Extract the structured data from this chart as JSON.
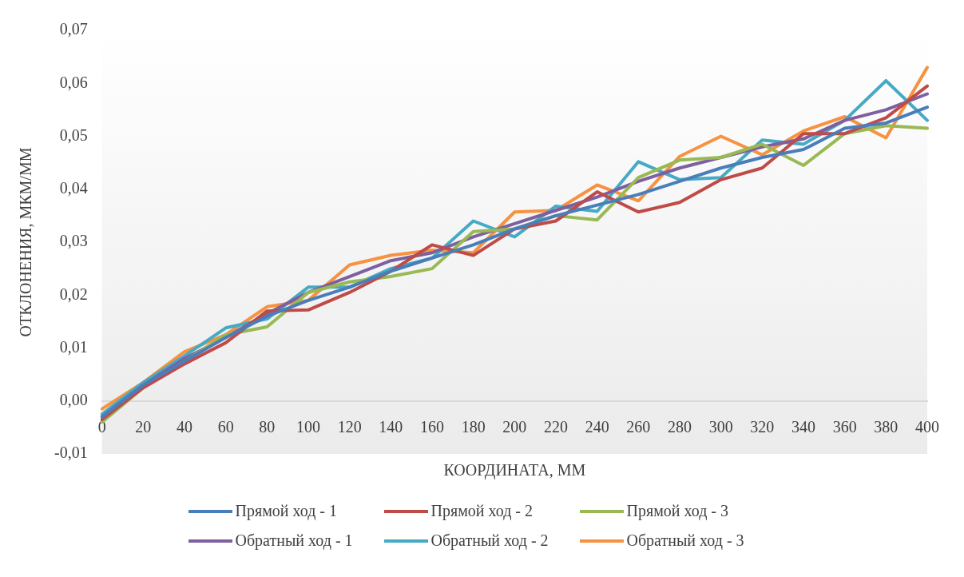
{
  "chart_data": {
    "type": "line",
    "xlabel": "КООРДИНАТА, ММ",
    "ylabel": "ОТКЛОНЕНИЯ, МКМ/ММ",
    "categories": [
      "0",
      "20",
      "40",
      "60",
      "80",
      "100",
      "120",
      "140",
      "160",
      "180",
      "200",
      "220",
      "240",
      "260",
      "280",
      "300",
      "320",
      "340",
      "360",
      "380",
      "400"
    ],
    "ylim": [
      -0.01,
      0.07
    ],
    "yticks": [
      {
        "value": -0.01,
        "label": "-0,01"
      },
      {
        "value": 0,
        "label": "0,00"
      },
      {
        "value": 0.01,
        "label": "0,01"
      },
      {
        "value": 0.02,
        "label": "0,02"
      },
      {
        "value": 0.03,
        "label": "0,03"
      },
      {
        "value": 0.04,
        "label": "0,04"
      },
      {
        "value": 0.05,
        "label": "0,05"
      },
      {
        "value": 0.06,
        "label": "0,06"
      },
      {
        "value": 0.07,
        "label": "0,07"
      }
    ],
    "grid": false,
    "legend": "bottom",
    "marker": "none",
    "line_style": "solid",
    "series": [
      {
        "name": "Прямой ход - 1",
        "color": "#4a7ebb",
        "values": [
          -0.003,
          0.003,
          0.0075,
          0.012,
          0.016,
          0.019,
          0.0215,
          0.0245,
          0.027,
          0.0295,
          0.0325,
          0.035,
          0.037,
          0.039,
          0.0415,
          0.044,
          0.046,
          0.0475,
          0.0515,
          0.0525,
          0.0555
        ]
      },
      {
        "name": "Прямой ход - 2",
        "color": "#be4b48",
        "values": [
          -0.0035,
          0.0025,
          0.007,
          0.011,
          0.017,
          0.0172,
          0.0205,
          0.0245,
          0.0295,
          0.0275,
          0.0325,
          0.034,
          0.0395,
          0.0357,
          0.0375,
          0.0418,
          0.044,
          0.0505,
          0.0505,
          0.0535,
          0.0595
        ]
      },
      {
        "name": "Прямой ход - 3",
        "color": "#98b954",
        "values": [
          -0.004,
          0.0025,
          0.0075,
          0.0125,
          0.014,
          0.0205,
          0.0225,
          0.0235,
          0.025,
          0.032,
          0.0325,
          0.035,
          0.0342,
          0.0422,
          0.0455,
          0.046,
          0.0485,
          0.0445,
          0.0505,
          0.052,
          0.0515
        ]
      },
      {
        "name": "Обратный ход - 1",
        "color": "#7d60a0",
        "values": [
          -0.003,
          0.003,
          0.008,
          0.012,
          0.0165,
          0.0205,
          0.0235,
          0.0265,
          0.028,
          0.031,
          0.0335,
          0.036,
          0.0385,
          0.0415,
          0.044,
          0.046,
          0.048,
          0.0495,
          0.053,
          0.055,
          0.058
        ]
      },
      {
        "name": "Обратный ход - 2",
        "color": "#46aac5",
        "values": [
          -0.0025,
          0.0035,
          0.0085,
          0.0138,
          0.0155,
          0.0215,
          0.0215,
          0.025,
          0.027,
          0.034,
          0.031,
          0.0368,
          0.0358,
          0.0452,
          0.0418,
          0.0422,
          0.0493,
          0.0485,
          0.053,
          0.0605,
          0.053
        ]
      },
      {
        "name": "Обратный ход - 3",
        "color": "#f69240",
        "values": [
          -0.0015,
          0.0035,
          0.0093,
          0.0125,
          0.0178,
          0.019,
          0.0257,
          0.0275,
          0.0285,
          0.028,
          0.0357,
          0.036,
          0.0408,
          0.0378,
          0.0462,
          0.05,
          0.0465,
          0.051,
          0.0537,
          0.0497,
          0.063
        ]
      }
    ]
  }
}
